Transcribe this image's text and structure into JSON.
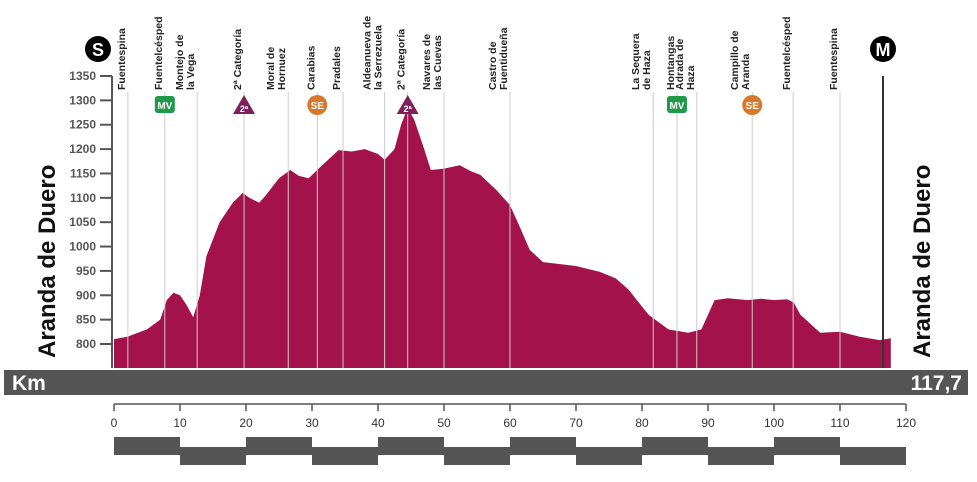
{
  "chart_data": {
    "type": "area",
    "title": "",
    "start_town": "Aranda de Duero",
    "finish_town": "Aranda de Duero",
    "start_badge": "S",
    "finish_badge": "M",
    "xlabel": "Km",
    "total_distance_label": "117,7",
    "total_distance": 117.7,
    "xlim": [
      0,
      120
    ],
    "x_ticks": [
      0,
      10,
      20,
      30,
      40,
      50,
      60,
      70,
      80,
      90,
      100,
      110,
      120
    ],
    "ylim": [
      750,
      1360
    ],
    "y_ticks": [
      800,
      850,
      900,
      950,
      1000,
      1050,
      1100,
      1150,
      1200,
      1250,
      1300,
      1350
    ],
    "profile": {
      "km": [
        0,
        2,
        5,
        7,
        8,
        9,
        10,
        11,
        12,
        13,
        14,
        16,
        18,
        19.5,
        20.5,
        22,
        23,
        25,
        26.7,
        28,
        29.5,
        31,
        33,
        34,
        36,
        38,
        40,
        41,
        42.5,
        43.5,
        44.5,
        45.5,
        47,
        48,
        50,
        52.4,
        54,
        55.5,
        58,
        60,
        61.5,
        63,
        65,
        70,
        73.6,
        76,
        78,
        81,
        84,
        87,
        89,
        91,
        93,
        96,
        98,
        100,
        102,
        103,
        104,
        107,
        110,
        113,
        116,
        117.7
      ],
      "elevation": [
        810,
        815,
        830,
        850,
        890,
        905,
        900,
        880,
        855,
        900,
        980,
        1050,
        1090,
        1110,
        1100,
        1090,
        1105,
        1140,
        1157,
        1145,
        1140,
        1160,
        1185,
        1198,
        1195,
        1200,
        1190,
        1178,
        1200,
        1250,
        1285,
        1260,
        1200,
        1157,
        1160,
        1167,
        1155,
        1147,
        1115,
        1085,
        1040,
        993,
        968,
        960,
        948,
        935,
        911,
        860,
        830,
        823,
        830,
        890,
        894,
        890,
        893,
        890,
        892,
        885,
        860,
        823,
        825,
        815,
        808,
        812
      ]
    },
    "waypoints": [
      {
        "km": 2.1,
        "label": [
          "Fuentespina"
        ]
      },
      {
        "km": 7.7,
        "label": [
          "Fuentelcésped"
        ],
        "badge": "MV"
      },
      {
        "km": 12.6,
        "label": [
          "Montejo de",
          "la Vega"
        ]
      },
      {
        "km": 19.7,
        "label": [
          "2ª Categoría"
        ],
        "badge": "2ª"
      },
      {
        "km": 26.4,
        "label": [
          "Moral de",
          "Hornuez"
        ]
      },
      {
        "km": 30.8,
        "label": [
          "Carabias"
        ],
        "badge": "SE"
      },
      {
        "km": 34.7,
        "label": [
          "Pradales"
        ]
      },
      {
        "km": 41.0,
        "label": [
          "Aldeanueva de",
          "la Serrezuela"
        ]
      },
      {
        "km": 44.5,
        "label": [
          "2ª Categoría"
        ],
        "badge": "2ª"
      },
      {
        "km": 50.0,
        "label": [
          "Navares de",
          "las Cuevas"
        ]
      },
      {
        "km": 60.0,
        "label": [
          "Castro de",
          "Fuentidueña"
        ]
      },
      {
        "km": 81.7,
        "label": [
          "La Sequera",
          "de Haza"
        ]
      },
      {
        "km": 85.3,
        "label": [
          "Hontangas"
        ],
        "badge": "MV"
      },
      {
        "km": 88.3,
        "label": [
          "Adrada de",
          "Haza"
        ]
      },
      {
        "km": 96.7,
        "label": [
          "Campillo de",
          "Aranda"
        ],
        "badge": "SE"
      },
      {
        "km": 102.9,
        "label": [
          "Fuentelcésped"
        ]
      },
      {
        "km": 110.0,
        "label": [
          "Fuentespina"
        ]
      }
    ],
    "colors": {
      "profile": "#a3124a",
      "mv": "#1f9a4a",
      "se": "#d9782a",
      "climb": "#7d1f5a",
      "bar": "#555555"
    }
  }
}
